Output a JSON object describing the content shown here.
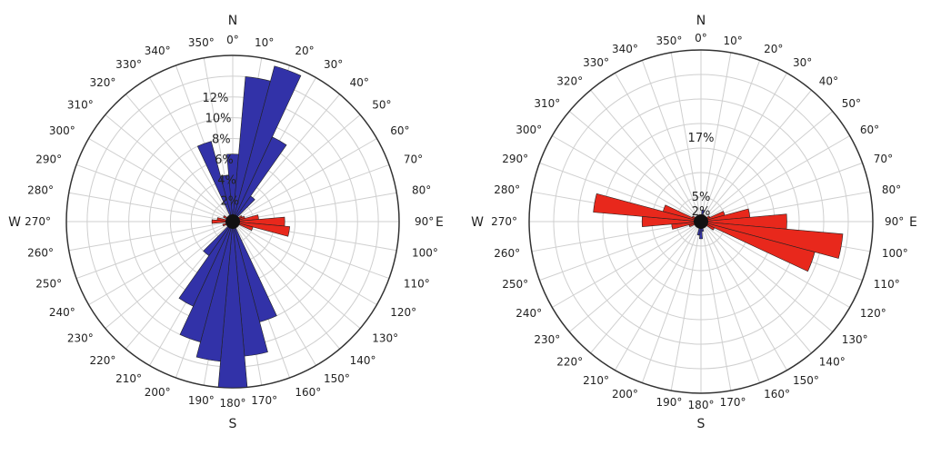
{
  "chart_data": [
    {
      "type": "polar-bar",
      "cardinals": {
        "n": "N",
        "e": "E",
        "s": "S",
        "w": "W"
      },
      "angle_labels": [
        "0°",
        "10°",
        "20°",
        "30°",
        "40°",
        "50°",
        "60°",
        "70°",
        "80°",
        "90°",
        "100°",
        "110°",
        "120°",
        "130°",
        "140°",
        "150°",
        "160°",
        "170°",
        "180°",
        "190°",
        "200°",
        "210°",
        "220°",
        "230°",
        "240°",
        "250°",
        "260°",
        "270°",
        "280°",
        "290°",
        "300°",
        "310°",
        "320°",
        "330°",
        "340°",
        "350°"
      ],
      "ring_labels": [
        "2%",
        "4%",
        "6%",
        "8%",
        "10%",
        "12%"
      ],
      "r_max": 16,
      "series": [
        {
          "color": "#3232a8",
          "sectors": [
            {
              "dir": 0,
              "value": 6.5
            },
            {
              "dir": 10,
              "value": 14.0
            },
            {
              "dir": 20,
              "value": 15.5
            },
            {
              "dir": 30,
              "value": 9.0
            },
            {
              "dir": 40,
              "value": 3.0
            },
            {
              "dir": 160,
              "value": 10.0
            },
            {
              "dir": 170,
              "value": 13.0
            },
            {
              "dir": 180,
              "value": 16.0
            },
            {
              "dir": 190,
              "value": 13.5
            },
            {
              "dir": 200,
              "value": 12.0
            },
            {
              "dir": 210,
              "value": 9.0
            },
            {
              "dir": 220,
              "value": 4.0
            },
            {
              "dir": 340,
              "value": 8.0
            },
            {
              "dir": 350,
              "value": 4.5
            }
          ]
        },
        {
          "color": "#e8281c",
          "sectors": [
            {
              "dir": 60,
              "value": 1.0
            },
            {
              "dir": 70,
              "value": 1.2
            },
            {
              "dir": 80,
              "value": 2.5
            },
            {
              "dir": 90,
              "value": 5.0
            },
            {
              "dir": 100,
              "value": 5.5
            },
            {
              "dir": 110,
              "value": 2.0
            },
            {
              "dir": 250,
              "value": 1.0
            },
            {
              "dir": 270,
              "value": 2.0
            },
            {
              "dir": 280,
              "value": 1.5
            },
            {
              "dir": 300,
              "value": 1.0
            }
          ]
        }
      ]
    },
    {
      "type": "polar-bar",
      "cardinals": {
        "n": "N",
        "e": "E",
        "s": "S",
        "w": "W"
      },
      "angle_labels": [
        "0°",
        "10°",
        "20°",
        "30°",
        "40°",
        "50°",
        "60°",
        "70°",
        "80°",
        "90°",
        "100°",
        "110°",
        "120°",
        "130°",
        "140°",
        "150°",
        "160°",
        "170°",
        "180°",
        "190°",
        "200°",
        "210°",
        "220°",
        "230°",
        "240°",
        "250°",
        "260°",
        "270°",
        "280°",
        "290°",
        "300°",
        "310°",
        "320°",
        "330°",
        "340°",
        "350°"
      ],
      "ring_labels": [
        "2%",
        "5%",
        "17%"
      ],
      "ring_values": [
        2,
        5,
        17
      ],
      "r_max": 35,
      "series": [
        {
          "color": "#3232a8",
          "sectors": [
            {
              "dir": 10,
              "value": 2.4
            },
            {
              "dir": 20,
              "value": 1.5
            },
            {
              "dir": 170,
              "value": 2.0
            },
            {
              "dir": 180,
              "value": 3.5
            },
            {
              "dir": 190,
              "value": 2.8
            },
            {
              "dir": 340,
              "value": 1.2
            },
            {
              "dir": 350,
              "value": 0.8
            }
          ]
        },
        {
          "color": "#e8281c",
          "sectors": [
            {
              "dir": 60,
              "value": 2.0
            },
            {
              "dir": 70,
              "value": 5.0
            },
            {
              "dir": 80,
              "value": 10.0
            },
            {
              "dir": 90,
              "value": 17.5
            },
            {
              "dir": 100,
              "value": 29.0
            },
            {
              "dir": 110,
              "value": 24.0
            },
            {
              "dir": 120,
              "value": 3.0
            },
            {
              "dir": 250,
              "value": 2.5
            },
            {
              "dir": 260,
              "value": 6.0
            },
            {
              "dir": 270,
              "value": 12.0
            },
            {
              "dir": 280,
              "value": 22.0
            },
            {
              "dir": 290,
              "value": 8.0
            },
            {
              "dir": 300,
              "value": 2.0
            }
          ]
        }
      ]
    }
  ]
}
